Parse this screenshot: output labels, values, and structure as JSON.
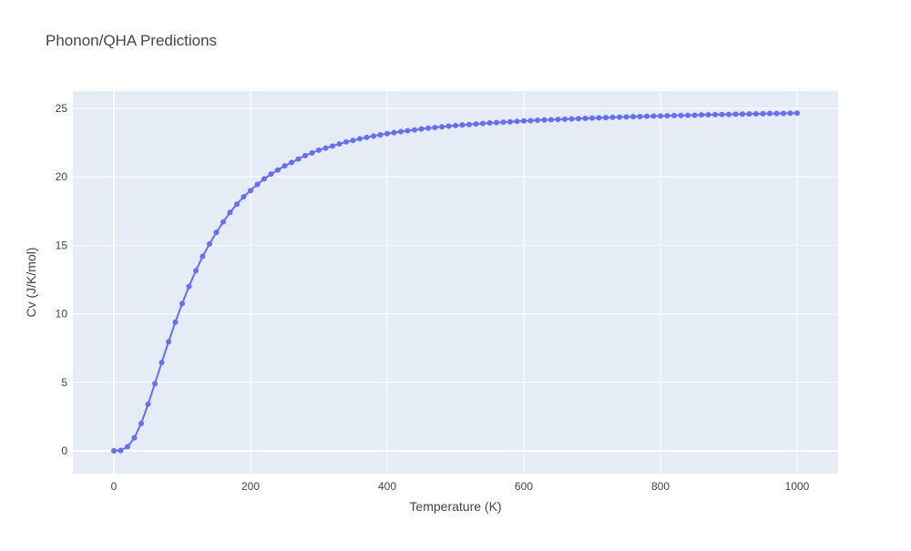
{
  "chart_data": {
    "type": "line",
    "title": "Phonon/QHA Predictions",
    "x_label": "Temperature (K)",
    "y_label": "Cv (J/K/mol)",
    "x": [
      0,
      10,
      20,
      30,
      40,
      50,
      60,
      70,
      80,
      90,
      100,
      110,
      120,
      130,
      140,
      150,
      160,
      170,
      180,
      190,
      200,
      210,
      220,
      230,
      240,
      250,
      260,
      270,
      280,
      290,
      300,
      310,
      320,
      330,
      340,
      350,
      360,
      370,
      380,
      390,
      400,
      410,
      420,
      430,
      440,
      450,
      460,
      470,
      480,
      490,
      500,
      510,
      520,
      530,
      540,
      550,
      560,
      570,
      580,
      590,
      600,
      610,
      620,
      630,
      640,
      650,
      660,
      670,
      680,
      690,
      700,
      710,
      720,
      730,
      740,
      750,
      760,
      770,
      780,
      790,
      800,
      810,
      820,
      830,
      840,
      850,
      860,
      870,
      880,
      890,
      900,
      910,
      920,
      930,
      940,
      950,
      960,
      970,
      980,
      990,
      1000
    ],
    "series": [
      {
        "color": "#636efa",
        "values": [
          0,
          0.03,
          0.3,
          0.95,
          2.0,
          3.4,
          4.9,
          6.45,
          7.95,
          9.4,
          10.75,
          12.0,
          13.15,
          14.2,
          15.1,
          15.95,
          16.7,
          17.4,
          18.0,
          18.55,
          19.0,
          19.45,
          19.85,
          20.2,
          20.5,
          20.8,
          21.05,
          21.3,
          21.55,
          21.75,
          21.95,
          22.1,
          22.25,
          22.4,
          22.55,
          22.65,
          22.78,
          22.88,
          22.98,
          23.07,
          23.15,
          23.23,
          23.3,
          23.37,
          23.43,
          23.49,
          23.55,
          23.6,
          23.65,
          23.7,
          23.74,
          23.78,
          23.82,
          23.86,
          23.9,
          23.93,
          23.96,
          23.99,
          24.02,
          24.05,
          24.08,
          24.1,
          24.13,
          24.15,
          24.17,
          24.19,
          24.21,
          24.23,
          24.25,
          24.27,
          24.29,
          24.31,
          24.32,
          24.34,
          24.36,
          24.37,
          24.39,
          24.4,
          24.42,
          24.43,
          24.44,
          24.46,
          24.47,
          24.48,
          24.49,
          24.5,
          24.52,
          24.53,
          24.54,
          24.55,
          24.56,
          24.57,
          24.58,
          24.59,
          24.6,
          24.61,
          24.62,
          24.62,
          24.63,
          24.64,
          24.65
        ]
      }
    ],
    "xlim": [
      -60,
      1060
    ],
    "ylim": [
      -1.66,
      26.26
    ],
    "xticks": [
      0,
      200,
      400,
      600,
      800,
      1000
    ],
    "yticks": [
      0,
      5,
      10,
      15,
      20,
      25
    ],
    "grid": true
  }
}
